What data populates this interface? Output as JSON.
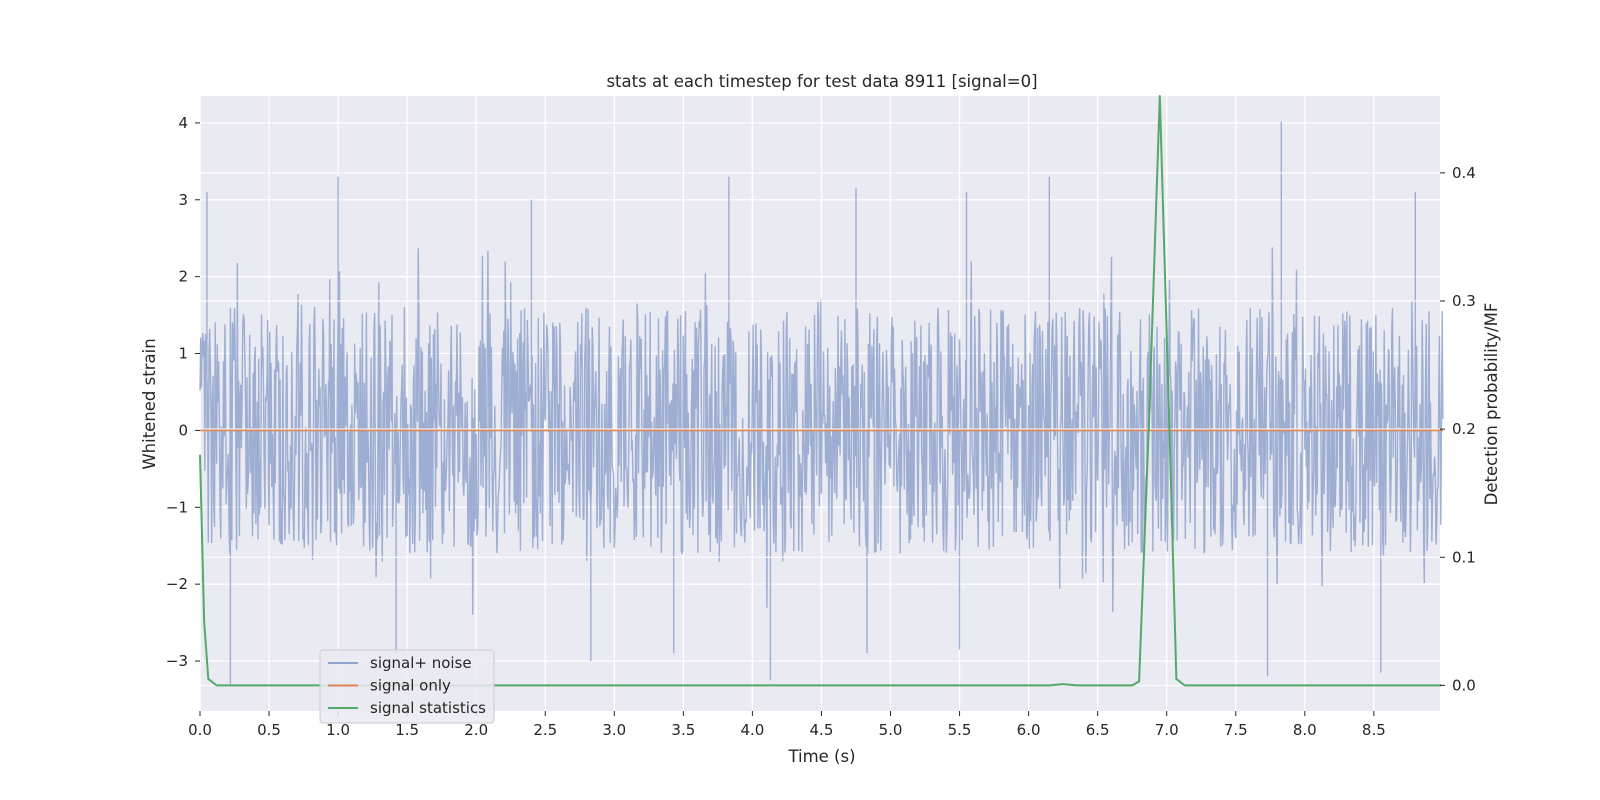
{
  "chart_data": {
    "type": "line",
    "title": "stats at each timestep for test data 8911 [signal=0]",
    "xlabel": "Time (s)",
    "ylabel": "Whitened strain",
    "y2label": "Detection probability/MF",
    "xlim": [
      0.0,
      9.0
    ],
    "ylim": [
      -3.65,
      4.35
    ],
    "y2lim": [
      -0.02,
      0.46
    ],
    "x_ticks": [
      0.0,
      0.5,
      1.0,
      1.5,
      2.0,
      2.5,
      3.0,
      3.5,
      4.0,
      4.5,
      5.0,
      5.5,
      6.0,
      6.5,
      7.0,
      7.5,
      8.0,
      8.5
    ],
    "x_tick_labels": [
      "0.0",
      "0.5",
      "1.0",
      "1.5",
      "2.0",
      "2.5",
      "3.0",
      "3.5",
      "4.0",
      "4.5",
      "5.0",
      "5.5",
      "6.0",
      "6.5",
      "7.0",
      "7.5",
      "8.0",
      "8.5"
    ],
    "y_ticks": [
      -3,
      -2,
      -1,
      0,
      1,
      2,
      3,
      4
    ],
    "y_tick_labels": [
      "−3",
      "−2",
      "−1",
      "0",
      "1",
      "2",
      "3",
      "4"
    ],
    "y2_ticks": [
      0.0,
      0.1,
      0.2,
      0.3,
      0.4
    ],
    "y2_tick_labels": [
      "0.0",
      "0.1",
      "0.2",
      "0.3",
      "0.4"
    ],
    "grid": true,
    "legend_position": "lower-left",
    "series": [
      {
        "name": "signal+ noise",
        "axis": "left",
        "color": "#8fa3cc",
        "kind": "dense-noise",
        "typical_range": [
          -1.6,
          1.6
        ],
        "max": 4.02,
        "min": -3.3,
        "peaks": [
          {
            "x": 0.05,
            "y": 3.1
          },
          {
            "x": 1.0,
            "y": 3.3
          },
          {
            "x": 2.4,
            "y": 3.0
          },
          {
            "x": 3.83,
            "y": 3.3
          },
          {
            "x": 4.75,
            "y": 3.15
          },
          {
            "x": 5.55,
            "y": 3.1
          },
          {
            "x": 6.15,
            "y": 3.3
          },
          {
            "x": 7.83,
            "y": 4.02
          },
          {
            "x": 8.8,
            "y": 3.1
          }
        ],
        "troughs": [
          {
            "x": 0.22,
            "y": -3.3
          },
          {
            "x": 1.42,
            "y": -2.9
          },
          {
            "x": 2.83,
            "y": -3.0
          },
          {
            "x": 3.43,
            "y": -2.9
          },
          {
            "x": 4.13,
            "y": -3.25
          },
          {
            "x": 4.83,
            "y": -2.9
          },
          {
            "x": 5.5,
            "y": -2.85
          },
          {
            "x": 7.73,
            "y": -3.2
          },
          {
            "x": 8.55,
            "y": -3.15
          }
        ]
      },
      {
        "name": "signal only",
        "axis": "left",
        "color": "#dd8452",
        "x": [
          0.0,
          9.0
        ],
        "y": [
          0.0,
          0.0
        ]
      },
      {
        "name": "signal statistics",
        "axis": "right",
        "color": "#55a868",
        "x": [
          0.0,
          0.03,
          0.06,
          0.12,
          0.2,
          6.15,
          6.25,
          6.35,
          6.75,
          6.8,
          6.87,
          6.95,
          7.02,
          7.07,
          7.13,
          8.99
        ],
        "y": [
          0.18,
          0.05,
          0.005,
          0.0,
          0.0,
          0.0,
          0.001,
          0.0,
          0.0,
          0.003,
          0.2,
          0.46,
          0.2,
          0.005,
          0.0,
          0.0
        ]
      }
    ]
  }
}
